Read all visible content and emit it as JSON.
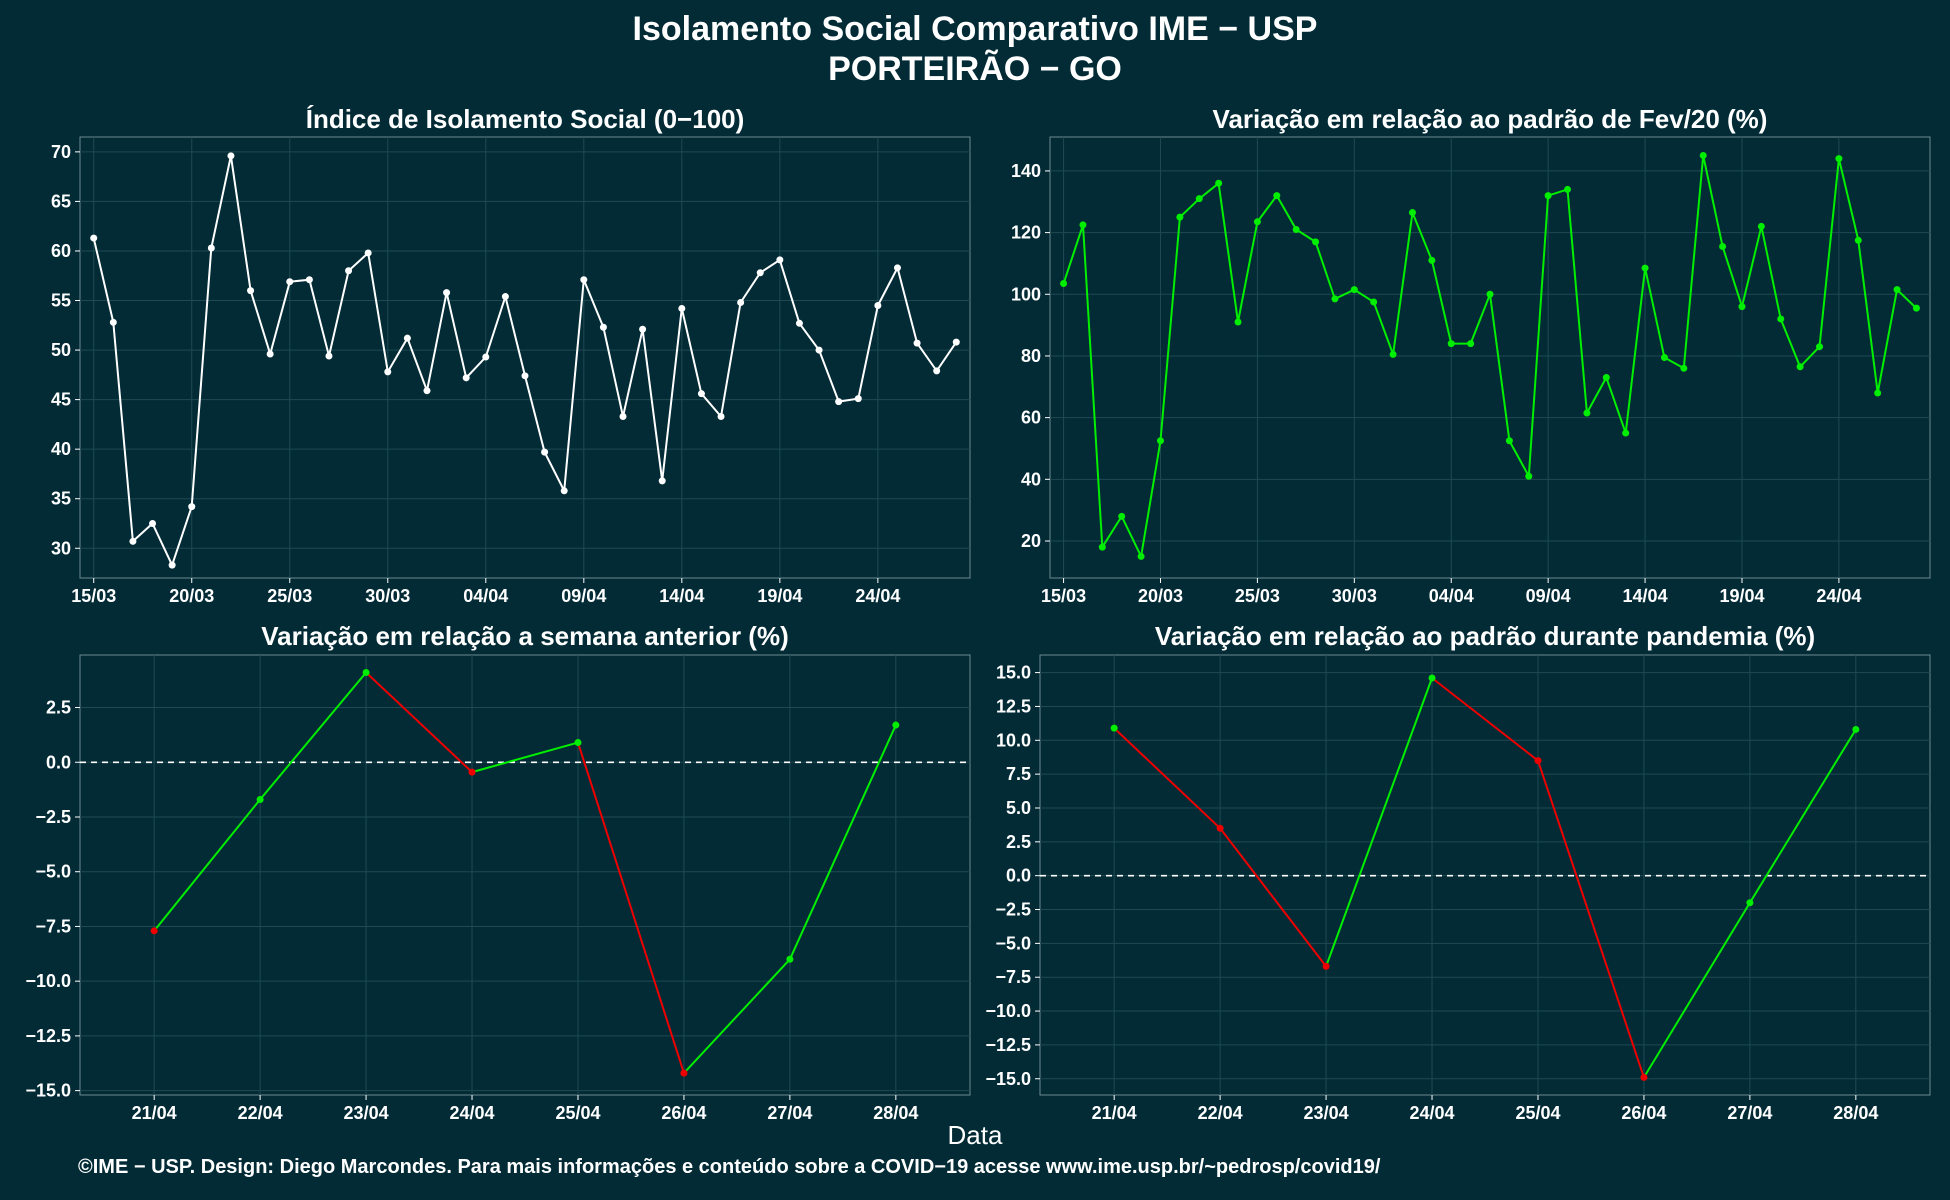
{
  "page": {
    "title_line1": "Isolamento Social Comparativo IME − USP",
    "title_line2": "PORTEIRÃO − GO",
    "xlabel": "Data",
    "footer": "©IME − USP. Design: Diego Marcondes. Para mais informações e conteúdo sobre a COVID−19 acesse www.ime.usp.br/~pedrosp/covid19/"
  },
  "colors": {
    "background": "#022b36",
    "white_series": "#ffffff",
    "green": "#00ee00",
    "red": "#ee0000",
    "grid": "#1f4a52",
    "axis_text": "#ffffff"
  },
  "chart_data": [
    {
      "id": "indice",
      "type": "line",
      "title": "Índice de Isolamento Social (0−100)",
      "color": "white",
      "xlabel": "",
      "ylabel": "",
      "x_tick_labels": [
        "15/03",
        "20/03",
        "25/03",
        "30/03",
        "04/04",
        "09/04",
        "14/04",
        "19/04",
        "24/04"
      ],
      "x_tick_index": [
        0,
        5,
        10,
        15,
        20,
        25,
        30,
        35,
        40
      ],
      "yticks": [
        30,
        35,
        40,
        45,
        50,
        55,
        60,
        65,
        70
      ],
      "ylim": [
        27,
        71.5
      ],
      "xlim": [
        -0.7,
        44.7
      ],
      "grid": true,
      "values": [
        61.3,
        52.8,
        30.7,
        32.5,
        28.3,
        34.2,
        60.3,
        69.6,
        56.0,
        49.6,
        56.9,
        57.1,
        49.4,
        58.0,
        59.8,
        47.8,
        51.2,
        45.9,
        55.8,
        47.2,
        49.3,
        55.4,
        47.4,
        39.7,
        35.8,
        57.1,
        52.3,
        43.3,
        52.1,
        36.8,
        54.2,
        45.6,
        43.3,
        54.8,
        57.8,
        59.1,
        52.7,
        50.0,
        44.8,
        45.1,
        54.5,
        58.3,
        50.7,
        47.9,
        50.8
      ]
    },
    {
      "id": "fev20",
      "type": "line",
      "title": "Variação em relação ao padrão de Fev/20 (%)",
      "color": "green",
      "xlabel": "",
      "ylabel": "",
      "x_tick_labels": [
        "15/03",
        "20/03",
        "25/03",
        "30/03",
        "04/04",
        "09/04",
        "14/04",
        "19/04",
        "24/04"
      ],
      "x_tick_index": [
        0,
        5,
        10,
        15,
        20,
        25,
        30,
        35,
        40
      ],
      "yticks": [
        20,
        40,
        60,
        80,
        100,
        120,
        140
      ],
      "ylim": [
        8,
        151
      ],
      "xlim": [
        -0.7,
        44.7
      ],
      "grid": true,
      "values": [
        103.5,
        122.5,
        18.0,
        28.0,
        15.0,
        52.5,
        125.0,
        131.0,
        136.0,
        91.0,
        123.5,
        132.0,
        121.0,
        117.0,
        98.5,
        101.5,
        97.5,
        80.5,
        126.5,
        111.0,
        84.0,
        84.0,
        100.0,
        52.5,
        41.0,
        132.0,
        134.0,
        61.5,
        73.0,
        55.0,
        108.5,
        79.5,
        76.0,
        145.0,
        115.5,
        96.0,
        122.0,
        92.0,
        76.5,
        83.0,
        144.0,
        117.5,
        68.0,
        101.5,
        95.5
      ]
    },
    {
      "id": "semana",
      "type": "line",
      "title": "Variação em relação a semana anterior (%)",
      "coloring": "green when rising, red when falling",
      "xlabel": "",
      "ylabel": "",
      "categories": [
        "21/04",
        "22/04",
        "23/04",
        "24/04",
        "25/04",
        "26/04",
        "27/04",
        "28/04"
      ],
      "values": [
        -7.7,
        -1.7,
        4.1,
        -0.45,
        0.9,
        -14.2,
        -9.0,
        1.7
      ],
      "yticks": [
        -15.0,
        -12.5,
        -10.0,
        -7.5,
        -5.0,
        -2.5,
        0.0,
        2.5
      ],
      "ytick_labels": [
        "−15.0",
        "−12.5",
        "−10.0",
        "−7.5",
        "−5.0",
        "−2.5",
        "0.0",
        "2.5"
      ],
      "ylim": [
        -15.2,
        4.9
      ],
      "reference_line": 0,
      "grid": true
    },
    {
      "id": "pandemia",
      "type": "line",
      "title": "Variação em relação ao padrão durante pandemia (%)",
      "coloring": "green when rising, red when falling",
      "xlabel": "",
      "ylabel": "",
      "categories": [
        "21/04",
        "22/04",
        "23/04",
        "24/04",
        "25/04",
        "26/04",
        "27/04",
        "28/04"
      ],
      "values": [
        10.9,
        3.5,
        -6.7,
        14.6,
        8.5,
        -14.9,
        -2.0,
        10.8
      ],
      "yticks": [
        -15.0,
        -12.5,
        -10.0,
        -7.5,
        -5.0,
        -2.5,
        0.0,
        2.5,
        5.0,
        7.5,
        10.0,
        12.5,
        15.0
      ],
      "ytick_labels": [
        "−15.0",
        "−12.5",
        "−10.0",
        "−7.5",
        "−5.0",
        "−2.5",
        "0.0",
        "2.5",
        "5.0",
        "7.5",
        "10.0",
        "12.5",
        "15.0"
      ],
      "ylim": [
        -16.2,
        16.3
      ],
      "reference_line": 0,
      "grid": true
    }
  ]
}
